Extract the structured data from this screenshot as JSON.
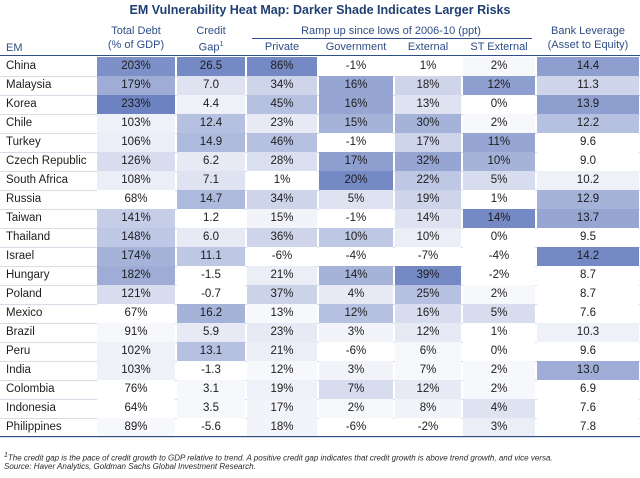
{
  "title": "EM Vulnerability Heat Map: Darker Shade Indicates Larger Risks",
  "headers": {
    "em": "EM",
    "total_debt_1": "Total Debt",
    "total_debt_2": "(% of GDP)",
    "credit_gap_1": "Credit",
    "credit_gap_2": "Gap",
    "credit_gap_sup": "1",
    "rampup_group": "Ramp up since lows of 2006-10 (ppt)",
    "private": "Private",
    "government": "Government",
    "external": "External",
    "st_external": "ST External",
    "bank_leverage_1": "Bank Leverage",
    "bank_leverage_2": "(Asset to Equity)"
  },
  "chart_data": {
    "type": "table",
    "title": "EM Vulnerability Heat Map: Darker Shade Indicates Larger Risks",
    "columns": [
      "Total Debt (% of GDP)",
      "Credit Gap",
      "Private",
      "Government",
      "External",
      "ST External",
      "Bank Leverage (Asset to Equity)"
    ],
    "rows": [
      {
        "country": "China",
        "values": [
          "203%",
          "26.5",
          "86%",
          "-1%",
          "1%",
          "2%",
          "14.4"
        ],
        "shades": [
          0.8,
          0.85,
          0.85,
          0.0,
          0.0,
          0.05,
          0.7
        ]
      },
      {
        "country": "Malaysia",
        "values": [
          "179%",
          "7.0",
          "34%",
          "16%",
          "18%",
          "12%",
          "11.3"
        ],
        "shades": [
          0.6,
          0.2,
          0.3,
          0.65,
          0.3,
          0.7,
          0.3
        ]
      },
      {
        "country": "Korea",
        "values": [
          "233%",
          "4.4",
          "45%",
          "16%",
          "13%",
          "0%",
          "13.9"
        ],
        "shades": [
          0.9,
          0.1,
          0.45,
          0.65,
          0.2,
          0.0,
          0.7
        ]
      },
      {
        "country": "Chile",
        "values": [
          "103%",
          "12.4",
          "23%",
          "15%",
          "30%",
          "2%",
          "12.2"
        ],
        "shades": [
          0.1,
          0.45,
          0.15,
          0.55,
          0.55,
          0.05,
          0.45
        ]
      },
      {
        "country": "Turkey",
        "values": [
          "106%",
          "14.9",
          "46%",
          "-1%",
          "17%",
          "11%",
          "9.6"
        ],
        "shades": [
          0.12,
          0.5,
          0.45,
          0.0,
          0.3,
          0.65,
          0.0
        ]
      },
      {
        "country": "Czech Republic",
        "values": [
          "126%",
          "6.2",
          "28%",
          "17%",
          "32%",
          "10%",
          "9.0"
        ],
        "shades": [
          0.25,
          0.15,
          0.22,
          0.7,
          0.65,
          0.55,
          0.0
        ]
      },
      {
        "country": "South Africa",
        "values": [
          "108%",
          "7.1",
          "1%",
          "20%",
          "22%",
          "5%",
          "10.2"
        ],
        "shades": [
          0.12,
          0.2,
          0.0,
          0.85,
          0.4,
          0.25,
          0.1
        ]
      },
      {
        "country": "Russia",
        "values": [
          "68%",
          "14.7",
          "34%",
          "5%",
          "19%",
          "1%",
          "12.9"
        ],
        "shades": [
          0.0,
          0.5,
          0.3,
          0.2,
          0.3,
          0.0,
          0.55
        ]
      },
      {
        "country": "Taiwan",
        "values": [
          "141%",
          "1.2",
          "15%",
          "-1%",
          "14%",
          "14%",
          "13.7"
        ],
        "shades": [
          0.35,
          0.0,
          0.08,
          0.0,
          0.2,
          0.85,
          0.65
        ]
      },
      {
        "country": "Thailand",
        "values": [
          "148%",
          "6.0",
          "36%",
          "10%",
          "10%",
          "0%",
          "9.5"
        ],
        "shades": [
          0.4,
          0.15,
          0.3,
          0.4,
          0.12,
          0.0,
          0.0
        ]
      },
      {
        "country": "Israel",
        "values": [
          "174%",
          "11.1",
          "-6%",
          "-4%",
          "-7%",
          "-4%",
          "14.2"
        ],
        "shades": [
          0.55,
          0.4,
          0.0,
          0.0,
          0.0,
          0.0,
          0.85
        ]
      },
      {
        "country": "Hungary",
        "values": [
          "182%",
          "-1.5",
          "21%",
          "14%",
          "39%",
          "-2%",
          "8.7"
        ],
        "shades": [
          0.6,
          0.0,
          0.12,
          0.55,
          0.85,
          0.0,
          0.0
        ]
      },
      {
        "country": "Poland",
        "values": [
          "121%",
          "-0.7",
          "37%",
          "4%",
          "25%",
          "2%",
          "8.7"
        ],
        "shades": [
          0.25,
          0.0,
          0.32,
          0.15,
          0.45,
          0.05,
          0.0
        ]
      },
      {
        "country": "Mexico",
        "values": [
          "67%",
          "16.2",
          "13%",
          "12%",
          "16%",
          "5%",
          "7.6"
        ],
        "shades": [
          0.0,
          0.55,
          0.05,
          0.45,
          0.25,
          0.25,
          0.0
        ]
      },
      {
        "country": "Brazil",
        "values": [
          "91%",
          "5.9",
          "23%",
          "3%",
          "12%",
          "1%",
          "10.3"
        ],
        "shades": [
          0.05,
          0.15,
          0.15,
          0.08,
          0.15,
          0.0,
          0.1
        ]
      },
      {
        "country": "Peru",
        "values": [
          "102%",
          "13.1",
          "21%",
          "-6%",
          "6%",
          "0%",
          "9.6"
        ],
        "shades": [
          0.1,
          0.45,
          0.12,
          0.0,
          0.05,
          0.0,
          0.0
        ]
      },
      {
        "country": "India",
        "values": [
          "103%",
          "-1.3",
          "12%",
          "3%",
          "7%",
          "2%",
          "13.0"
        ],
        "shades": [
          0.1,
          0.0,
          0.05,
          0.08,
          0.05,
          0.05,
          0.6
        ]
      },
      {
        "country": "Colombia",
        "values": [
          "76%",
          "3.1",
          "19%",
          "7%",
          "12%",
          "2%",
          "6.9"
        ],
        "shades": [
          0.0,
          0.05,
          0.1,
          0.25,
          0.15,
          0.05,
          0.0
        ]
      },
      {
        "country": "Indonesia",
        "values": [
          "64%",
          "3.5",
          "17%",
          "2%",
          "8%",
          "4%",
          "7.6"
        ],
        "shades": [
          0.0,
          0.05,
          0.08,
          0.05,
          0.08,
          0.2,
          0.0
        ]
      },
      {
        "country": "Philippines",
        "values": [
          "89%",
          "-5.6",
          "18%",
          "-6%",
          "-2%",
          "3%",
          "7.8"
        ],
        "shades": [
          0.05,
          0.0,
          0.08,
          0.0,
          0.0,
          0.12,
          0.0
        ]
      }
    ]
  },
  "footnote_1": "The credit gap is the pace of credit growth to GDP relative to trend. A positive credit gap indicates that credit growth is above trend growth, and vice versa.",
  "footnote_sup": "1",
  "source": "Source: Haver Analytics, Goldman Sachs Global Investment Research.",
  "colors": {
    "low": "#ffffff",
    "high": "#5d74ba",
    "header": "#2e4e86",
    "title": "#1f3f72"
  }
}
